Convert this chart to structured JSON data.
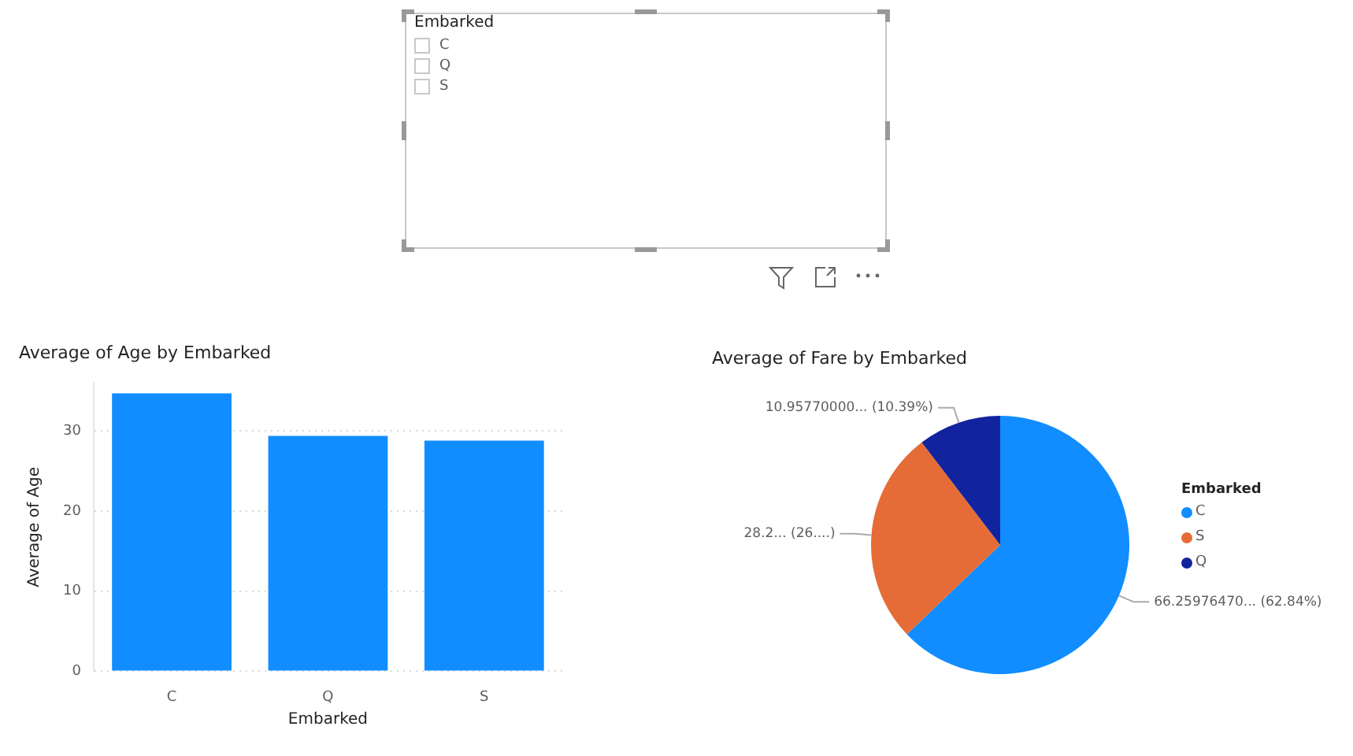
{
  "chart_data": [
    {
      "type": "other",
      "title": "Embarked",
      "categories": [
        "C",
        "Q",
        "S"
      ]
    },
    {
      "type": "bar",
      "title": "Average of Age by Embarked",
      "xlabel": "Embarked",
      "ylabel": "Average of Age",
      "categories": [
        "C",
        "Q",
        "S"
      ],
      "values": [
        34.7,
        29.4,
        28.8
      ],
      "color": "#118dff",
      "ylim": [
        0,
        36
      ],
      "yticks": [
        0,
        10,
        20,
        30
      ],
      "grid": "y"
    },
    {
      "type": "pie",
      "title": "Average of Fare by Embarked",
      "legend_title": "Embarked",
      "legend": "right",
      "categories": [
        "C",
        "S",
        "Q"
      ],
      "values": [
        66.2597647,
        28.22,
        10.9577
      ],
      "colors": [
        "#118dff",
        "#e66c37",
        "#12239e"
      ],
      "value_labels": [
        "66.25976470... (62.84%)",
        "28.2... (26....)",
        "10.95770000... (10.39%)"
      ]
    }
  ]
}
